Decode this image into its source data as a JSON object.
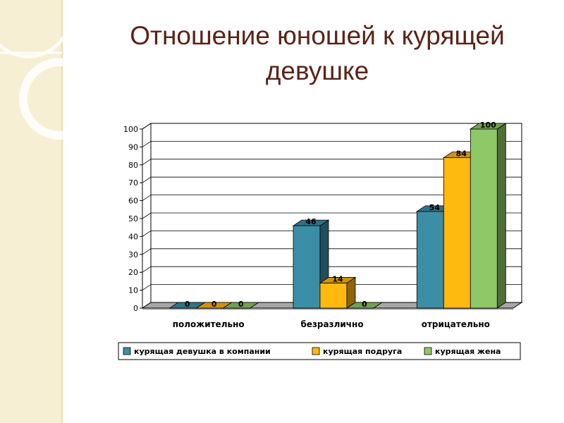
{
  "slide": {
    "title_line1": "Отношение юношей к курящей",
    "title_line2": "девушке"
  },
  "colors": {
    "title": "#5a2418",
    "background_strip": "#f7efd3",
    "teal": "#3b8ea5",
    "orange": "#ffb90f",
    "green": "#8fc866"
  },
  "chart_data": {
    "type": "bar",
    "categories": [
      "положительно",
      "безразлично",
      "отрицательно"
    ],
    "series": [
      {
        "name": "курящая девушка в компании",
        "values": [
          0,
          46,
          54
        ],
        "color": "#3b8ea5"
      },
      {
        "name": "курящая подруга",
        "values": [
          0,
          14,
          84
        ],
        "color": "#ffb90f"
      },
      {
        "name": "курящая жена",
        "values": [
          0,
          0,
          100
        ],
        "color": "#8fc866"
      }
    ],
    "yticks": [
      "0",
      "10",
      "20",
      "30",
      "40",
      "50",
      "60",
      "70",
      "80",
      "90",
      "100"
    ],
    "ylim": [
      0,
      100
    ],
    "grid": true,
    "legend": "bottom",
    "style": "3d-clustered-column"
  }
}
